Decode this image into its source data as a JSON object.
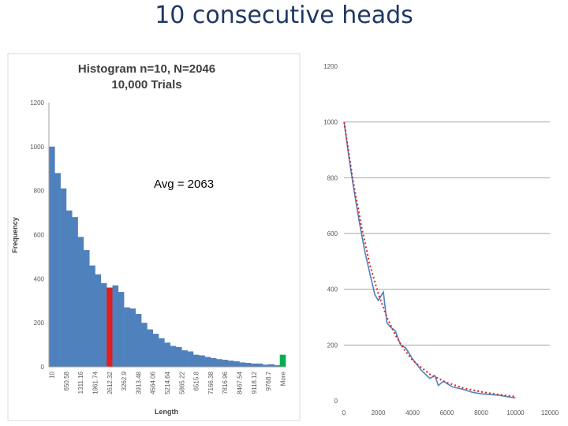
{
  "slide": {
    "title": "10 consecutive heads"
  },
  "annotation": {
    "avg": "Avg = 2063"
  },
  "chart_data": [
    {
      "type": "bar",
      "title": "Histogram n=10, N=2046",
      "subtitle": "10,000 Trials",
      "xlabel": "Length",
      "ylabel": "Frequency",
      "ylim": [
        0,
        1200
      ],
      "yticks": [
        0,
        200,
        400,
        600,
        800,
        1000,
        1200
      ],
      "tick_labels": [
        "10",
        "650.58",
        "1311.16",
        "1961.74",
        "2612.32",
        "3262.9",
        "3913.48",
        "4564.06",
        "5214.64",
        "5865.22",
        "6515.8",
        "7166.38",
        "7816.96",
        "8467.54",
        "9118.12",
        "9768.7",
        "More"
      ],
      "values": [
        1000,
        880,
        810,
        710,
        680,
        590,
        530,
        460,
        420,
        380,
        360,
        370,
        340,
        270,
        265,
        240,
        200,
        170,
        150,
        130,
        110,
        95,
        90,
        75,
        70,
        55,
        52,
        45,
        40,
        35,
        32,
        28,
        25,
        20,
        18,
        15,
        15,
        10,
        12,
        8,
        55
      ],
      "highlights": [
        {
          "index": 10,
          "color": "#e02020"
        },
        {
          "index": 40,
          "color": "#00b050"
        }
      ],
      "bar_color": "#4f81bd",
      "grid": false
    },
    {
      "type": "line",
      "xlim": [
        0,
        12000
      ],
      "ylim": [
        0,
        1200
      ],
      "xticks": [
        0,
        2000,
        4000,
        6000,
        8000,
        10000,
        12000
      ],
      "yticks": [
        0,
        200,
        400,
        600,
        800,
        1000,
        1200
      ],
      "grid": true,
      "series": [
        {
          "color": "#4f81bd",
          "style": "solid",
          "x": [
            10,
            300,
            600,
            900,
            1200,
            1500,
            1800,
            2000,
            2300,
            2500,
            2700,
            3000,
            3300,
            3600,
            4000,
            4500,
            5000,
            5300,
            5500,
            5800,
            6300,
            7000,
            7500,
            8000,
            9000,
            10000
          ],
          "y": [
            1000,
            870,
            750,
            640,
            540,
            460,
            380,
            360,
            390,
            280,
            265,
            250,
            200,
            190,
            150,
            110,
            80,
            90,
            55,
            70,
            50,
            40,
            30,
            25,
            20,
            10
          ]
        },
        {
          "color": "#e02020",
          "style": "dotted",
          "x": [
            10,
            500,
            1000,
            1500,
            2000,
            2500,
            3000,
            3500,
            4000,
            5000,
            6000,
            7000,
            8000,
            9000,
            10000
          ],
          "y": [
            1000,
            800,
            630,
            490,
            385,
            300,
            235,
            185,
            145,
            95,
            65,
            45,
            32,
            22,
            15
          ]
        }
      ]
    }
  ]
}
